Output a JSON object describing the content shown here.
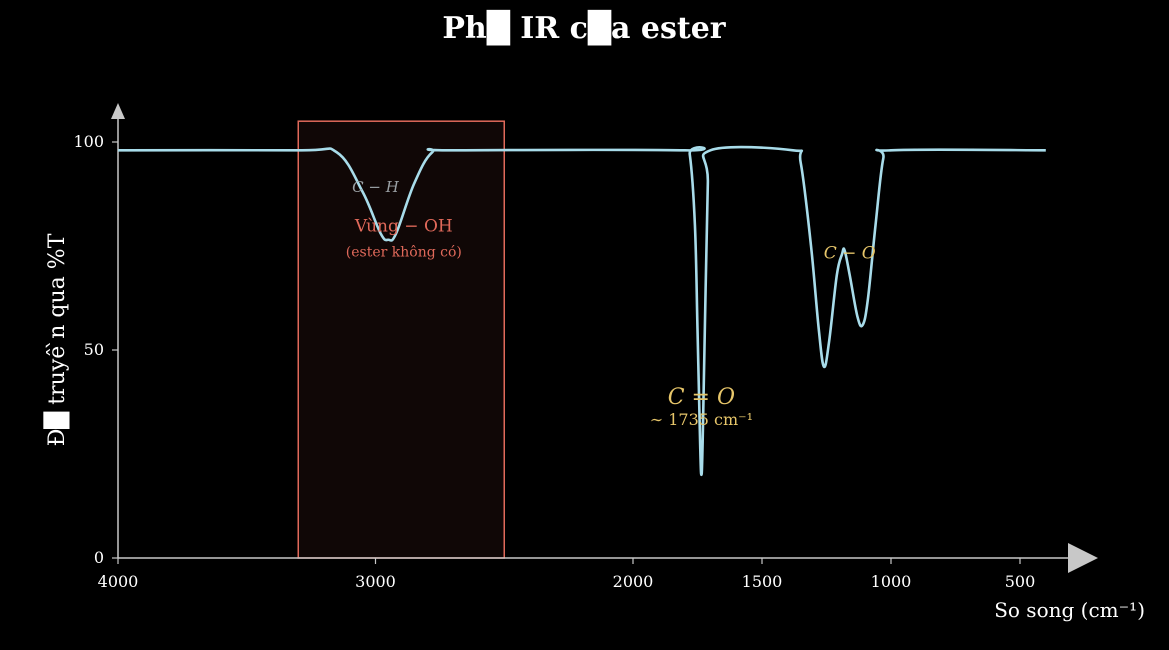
{
  "chart_data": {
    "type": "line",
    "title": "Ph█ IR c█a ester",
    "xlabel": "So song (cm⁻¹)",
    "ylabel": "Đ█ truyê ̀n qua %T",
    "x_reversed": true,
    "xlim": [
      4000,
      400
    ],
    "ylim": [
      0,
      100
    ],
    "xticks": [
      4000,
      3000,
      2000,
      1500,
      1000,
      500
    ],
    "yticks": [
      0,
      50,
      100
    ],
    "grid": false,
    "colors": {
      "background": "#000000",
      "line": "#a8dcea",
      "axis": "#c8c8c8",
      "highlight": "#e0695a",
      "annotation": "#e7c66a",
      "muted": "#9aa0a4"
    },
    "series": [
      {
        "baseline": 98,
        "points": [
          [
            4000,
            98
          ],
          [
            3300,
            98
          ],
          [
            3150,
            97.5
          ],
          [
            3050,
            88
          ],
          [
            2980,
            78
          ],
          [
            2950,
            76.5
          ],
          [
            2920,
            78
          ],
          [
            2850,
            90
          ],
          [
            2780,
            97.5
          ],
          [
            2700,
            98
          ],
          [
            1800,
            98
          ],
          [
            1780,
            97
          ],
          [
            1760,
            80
          ],
          [
            1750,
            55
          ],
          [
            1740,
            28
          ],
          [
            1735,
            20
          ],
          [
            1730,
            28
          ],
          [
            1720,
            60
          ],
          [
            1710,
            90
          ],
          [
            1700,
            98
          ],
          [
            1380,
            98
          ],
          [
            1350,
            95
          ],
          [
            1310,
            75
          ],
          [
            1280,
            55
          ],
          [
            1260,
            46
          ],
          [
            1240,
            52
          ],
          [
            1210,
            68
          ],
          [
            1190,
            73
          ],
          [
            1180,
            74
          ],
          [
            1160,
            68
          ],
          [
            1130,
            58
          ],
          [
            1110,
            56
          ],
          [
            1090,
            62
          ],
          [
            1060,
            80
          ],
          [
            1030,
            96
          ],
          [
            1000,
            98
          ],
          [
            400,
            98
          ]
        ]
      }
    ],
    "highlight_region": {
      "x": [
        3300,
        2500
      ],
      "y": [
        0,
        105
      ]
    },
    "annotations": [
      {
        "id": "ch",
        "text": "C − H",
        "x": 3000,
        "y": 88,
        "color": "muted"
      },
      {
        "id": "oh",
        "text": "Vùng  − OH",
        "x": 2890,
        "y": 78.5,
        "color": "highlight"
      },
      {
        "id": "oh_note",
        "text": "(ester không có)",
        "x": 2890,
        "y": 72.5,
        "color": "highlight"
      },
      {
        "id": "co_double",
        "text": "C = O",
        "x": 1735,
        "y": 37,
        "color": "annotation"
      },
      {
        "id": "co_double_note",
        "text": "∼ 1735 cm⁻¹",
        "x": 1735,
        "y": 32,
        "color": "annotation"
      },
      {
        "id": "co_single",
        "text": "C − O",
        "x": 1160,
        "y": 72,
        "color": "annotation"
      }
    ]
  }
}
